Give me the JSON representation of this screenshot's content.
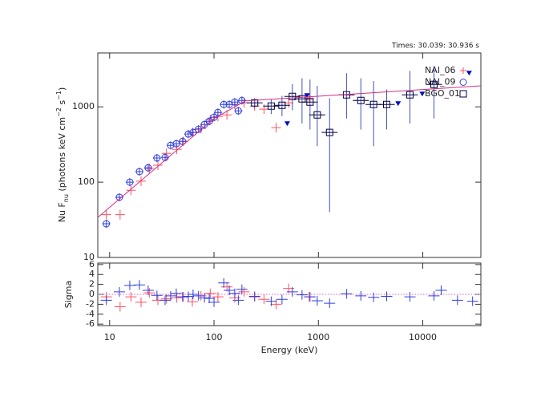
{
  "chart_data": [
    {
      "type": "scatter",
      "title": "Times: 30.039: 30.936 s",
      "ylabel": [
        "Nu F",
        "nu",
        " (photons keV cm",
        "−2",
        " s",
        "−1",
        ")"
      ],
      "xlog": true,
      "ylog": true,
      "xlim": [
        7.7,
        36000
      ],
      "xticks": [
        10,
        100,
        1000,
        10000
      ],
      "ylim": [
        10,
        5200
      ],
      "yticks": [
        10,
        100,
        1000
      ],
      "legend": "upper right",
      "series": [
        {
          "name": "NAI_06",
          "color": "#ff5060",
          "marker": "plus",
          "x": [
            9.3,
            12.6,
            16,
            20,
            24,
            29,
            35,
            44,
            51,
            62,
            75,
            92,
            109,
            133,
            158,
            194,
            245,
            301,
            393,
            519,
            816
          ],
          "values": [
            37,
            37,
            78,
            103,
            152,
            168,
            241,
            272,
            348,
            457,
            516,
            676,
            745,
            783,
            1076,
            1130,
            1025,
            930,
            529,
            1130,
            1310
          ]
        },
        {
          "name": "NAI_09",
          "color": "#3040e0",
          "marker": "circle",
          "x": [
            9.3,
            12.4,
            15.6,
            19.3,
            23.4,
            28.4,
            34,
            38.4,
            43.5,
            50,
            56.7,
            63,
            71,
            81,
            90,
            100,
            109,
            124,
            140,
            158,
            171,
            185
          ],
          "values": [
            28,
            63,
            100,
            138,
            155,
            209,
            213,
            308,
            324,
            348,
            435,
            457,
            504,
            583,
            643,
            727,
            843,
            1076,
            1076,
            1159,
            885,
            1216
          ]
        },
        {
          "name": "BGO_01",
          "color": "#000040",
          "marker": "square",
          "x": [
            245,
            353,
            448,
            563,
            697,
            831,
            975,
            1280,
            1860,
            2550,
            3380,
            4510,
            7530,
            12800
          ],
          "values": [
            1130,
            1025,
            1050,
            1375,
            1277,
            1159,
            783,
            457,
            1443,
            1216,
            1076,
            1076,
            1443,
            1984
          ],
          "y_low": [
            950,
            800,
            750,
            900,
            600,
            500,
            300,
            40,
            700,
            500,
            300,
            500,
            600,
            700
          ],
          "y_high": [
            1300,
            1250,
            1400,
            2000,
            2400,
            2300,
            1900,
            1300,
            2800,
            2400,
            2200,
            1700,
            3000,
            3500
          ]
        },
        {
          "color": "#0010c0",
          "marker": "triangle",
          "x": [
            503,
            777,
            5800,
            9880,
            27800
          ],
          "values": [
            598,
            1409,
            1103,
            1479,
            2800
          ]
        },
        {
          "color": "#d03080",
          "marker": "line",
          "x": [
            7.7,
            100,
            200,
            36000
          ],
          "values": [
            34,
            700,
            1200,
            1900
          ]
        }
      ]
    },
    {
      "type": "residual",
      "xlabel": "Energy (keV)",
      "ylabel": "Sigma",
      "xlog": true,
      "xlim": [
        7.7,
        36000
      ],
      "xticks": [
        10,
        100,
        1000,
        10000
      ],
      "ylim": [
        -6.3,
        6.3
      ],
      "yticks": [
        -6,
        -4,
        -2,
        0,
        2,
        4,
        6
      ],
      "zero_line_color": "#e060c0",
      "series": [
        {
          "color": "#ff5060",
          "x": [
            9.3,
            12.6,
            16,
            20,
            24,
            29,
            35,
            44,
            51,
            62,
            75,
            92,
            109,
            133,
            158,
            194,
            245,
            301,
            393,
            519,
            816
          ],
          "values": [
            -0.5,
            -2.5,
            -0.5,
            -1.6,
            0.3,
            -1.2,
            -0.9,
            -0.7,
            -0.5,
            -1.5,
            -0.3,
            0.2,
            -0.5,
            1.5,
            -0.7,
            0.5,
            -0.5,
            -1.0,
            -2.0,
            1.2,
            -0.5
          ]
        },
        {
          "color": "#3040e0",
          "x": [
            9.3,
            12.4,
            15.6,
            19.3,
            23.4,
            28.4,
            34,
            38.4,
            43.5,
            50,
            56.7,
            63,
            71,
            81,
            90,
            100,
            124,
            140,
            158,
            171,
            185,
            245,
            353,
            448,
            563,
            697,
            831,
            975,
            1280,
            1860,
            2550,
            3380,
            4510,
            7530,
            12800,
            15000,
            21500,
            30000
          ],
          "values": [
            -1.2,
            0.5,
            1.8,
            1.9,
            0.8,
            -0.2,
            -1.2,
            -0.3,
            0.2,
            -0.5,
            -0.4,
            0.0,
            -0.3,
            -0.7,
            -0.8,
            -1.6,
            2.3,
            0.8,
            0.2,
            -1.2,
            1.0,
            -0.4,
            -1.4,
            -1.0,
            0.5,
            -0.1,
            -0.5,
            -1.3,
            -1.8,
            0.1,
            -0.3,
            -0.6,
            -0.4,
            -0.5,
            -0.3,
            0.8,
            -1.2,
            -1.4
          ]
        }
      ]
    }
  ]
}
